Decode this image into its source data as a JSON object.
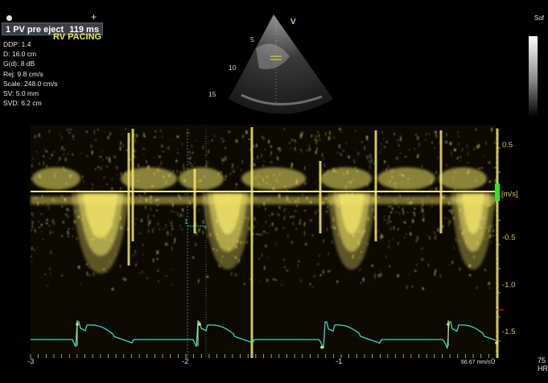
{
  "measurement": {
    "prefix": "1",
    "label": "PV pre eject",
    "value": "119 ms"
  },
  "mode_label": "RV PACING",
  "params": [
    "DDP: 1.4",
    "D: 16.0 cm",
    "G(d): 8 dB",
    "Rej: 9.8 cm/s",
    "Scale: 248.0 cm/s",
    "SV: 5.0 mm",
    "SVD: 6.2 cm"
  ],
  "sector": {
    "orientation_marker": "V",
    "depth_labels": [
      "5",
      "10",
      "15"
    ]
  },
  "velocity_axis": {
    "unit": "[m/s]",
    "ticks": [
      "0.5",
      "-0.5",
      "-1.0",
      "-1.5"
    ]
  },
  "time_axis": {
    "ticks": [
      "-3",
      "-2",
      "-1",
      "0"
    ]
  },
  "sweep_speed": "66.67 mm/s",
  "top_right_label": "Sof",
  "heart_rate": {
    "value": "75",
    "label": "HR"
  },
  "colors": {
    "doppler": "#f4e66a",
    "ecg": "#3fd6c8",
    "baseline": "#e8e07a",
    "marker_green": "#33e61b"
  }
}
